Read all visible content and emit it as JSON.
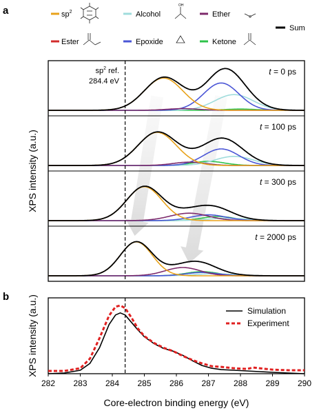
{
  "panels": {
    "a": "a",
    "b": "b"
  },
  "legend": [
    {
      "label": "sp",
      "sup": "2",
      "color": "#e8a21a",
      "icon": "aromatic-ring-icon"
    },
    {
      "label": "Alcohol",
      "color": "#9fdcdc",
      "icon": "alcohol-group-icon"
    },
    {
      "label": "Ether",
      "color": "#7d2a6b",
      "icon": "ether-group-icon"
    },
    {
      "label": "Sum",
      "color": "#000000",
      "icon": ""
    },
    {
      "label": "Ester",
      "color": "#d22b2b",
      "icon": "ester-group-icon"
    },
    {
      "label": "Epoxide",
      "color": "#4a55d6",
      "icon": "epoxide-group-icon"
    },
    {
      "label": "Ketone",
      "color": "#2ec24a",
      "icon": "ketone-group-icon"
    }
  ],
  "chart_data": [
    {
      "type": "line",
      "panel": "a",
      "ylabel": "XPS intensity (a.u.)",
      "xlim": [
        282,
        290
      ],
      "reference": {
        "x": 284.4,
        "label_line1": "sp",
        "label_sup": "2",
        "label_line1_tail": " ref.",
        "label_line2": "284.4 eV"
      },
      "subplots": [
        {
          "label_var": "t",
          "label_value": " = 0 ps",
          "peaks": [
            {
              "component": "sp2",
              "amp": 0.78,
              "center": 285.6,
              "sigma": 0.6
            },
            {
              "component": "Epoxide",
              "amp": 0.66,
              "center": 287.4,
              "sigma": 0.55
            },
            {
              "component": "Alcohol",
              "amp": 0.38,
              "center": 287.8,
              "sigma": 0.6
            },
            {
              "component": "Ether",
              "amp": 0.04,
              "center": 286.2,
              "sigma": 0.5
            },
            {
              "component": "Ketone",
              "amp": 0.03,
              "center": 288.0,
              "sigma": 0.5
            }
          ]
        },
        {
          "label_var": "t",
          "label_value": " = 100 ps",
          "peaks": [
            {
              "component": "sp2",
              "amp": 0.8,
              "center": 285.4,
              "sigma": 0.6
            },
            {
              "component": "Epoxide",
              "amp": 0.4,
              "center": 287.4,
              "sigma": 0.55
            },
            {
              "component": "Alcohol",
              "amp": 0.22,
              "center": 287.8,
              "sigma": 0.6
            },
            {
              "component": "Ether",
              "amp": 0.08,
              "center": 286.4,
              "sigma": 0.5
            },
            {
              "component": "Ketone",
              "amp": 0.1,
              "center": 287.0,
              "sigma": 0.5
            }
          ]
        },
        {
          "label_var": "t",
          "label_value": " = 300 ps",
          "peaks": [
            {
              "component": "sp2",
              "amp": 0.82,
              "center": 285.0,
              "sigma": 0.55
            },
            {
              "component": "Ether",
              "amp": 0.18,
              "center": 286.4,
              "sigma": 0.6
            },
            {
              "component": "Epoxide",
              "amp": 0.14,
              "center": 287.0,
              "sigma": 0.55
            },
            {
              "component": "Ketone",
              "amp": 0.1,
              "center": 287.3,
              "sigma": 0.5
            },
            {
              "component": "Alcohol",
              "amp": 0.06,
              "center": 287.6,
              "sigma": 0.6
            }
          ]
        },
        {
          "label_var": "t",
          "label_value": " = 2000 ps",
          "peaks": [
            {
              "component": "sp2",
              "amp": 0.82,
              "center": 284.75,
              "sigma": 0.5
            },
            {
              "component": "Ether",
              "amp": 0.2,
              "center": 286.2,
              "sigma": 0.55
            },
            {
              "component": "Ketone",
              "amp": 0.1,
              "center": 286.8,
              "sigma": 0.5
            },
            {
              "component": "Epoxide",
              "amp": 0.08,
              "center": 286.8,
              "sigma": 0.5
            },
            {
              "component": "Alcohol",
              "amp": 0.05,
              "center": 287.2,
              "sigma": 0.6
            }
          ]
        }
      ],
      "arrows": [
        {
          "x_from": 285.4,
          "x_to": 284.7
        },
        {
          "x_from": 287.4,
          "x_to": 286.4
        }
      ]
    },
    {
      "type": "line",
      "panel": "b",
      "xlabel": "Core-electron binding energy (eV)",
      "ylabel": "XPS intensity (a.u.)",
      "xlim": [
        282,
        290
      ],
      "xticks": [
        282,
        283,
        284,
        285,
        286,
        287,
        288,
        289,
        290
      ],
      "ylim": [
        0,
        1.05
      ],
      "reference_x": 284.4,
      "legend": [
        {
          "label": "Simulation",
          "color": "#000000",
          "style": "solid"
        },
        {
          "label": "Experiment",
          "color": "#e02020",
          "style": "dashed"
        }
      ],
      "series": [
        {
          "name": "Simulation",
          "x": [
            282,
            282.5,
            283.0,
            283.3,
            283.6,
            283.9,
            284.1,
            284.25,
            284.4,
            284.6,
            284.8,
            285.0,
            285.3,
            285.6,
            285.9,
            286.2,
            286.5,
            286.8,
            287.1,
            287.4,
            287.8,
            288.2,
            288.6,
            289.0,
            289.5,
            290
          ],
          "y": [
            0.0,
            0.01,
            0.05,
            0.15,
            0.38,
            0.72,
            0.86,
            0.89,
            0.86,
            0.75,
            0.64,
            0.54,
            0.44,
            0.37,
            0.33,
            0.27,
            0.19,
            0.12,
            0.08,
            0.06,
            0.05,
            0.04,
            0.03,
            0.02,
            0.01,
            0.0
          ]
        },
        {
          "name": "Experiment",
          "x": [
            282,
            282.5,
            283.0,
            283.3,
            283.6,
            283.9,
            284.1,
            284.25,
            284.4,
            284.6,
            284.8,
            285.0,
            285.3,
            285.6,
            285.9,
            286.2,
            286.5,
            286.8,
            287.1,
            287.4,
            287.8,
            288.2,
            288.4,
            288.6,
            289.0,
            289.5,
            290
          ],
          "y": [
            0.04,
            0.04,
            0.08,
            0.22,
            0.52,
            0.85,
            0.98,
            1.0,
            0.96,
            0.82,
            0.66,
            0.55,
            0.45,
            0.38,
            0.33,
            0.26,
            0.2,
            0.15,
            0.11,
            0.1,
            0.08,
            0.07,
            0.09,
            0.08,
            0.06,
            0.05,
            0.05
          ]
        }
      ]
    }
  ]
}
